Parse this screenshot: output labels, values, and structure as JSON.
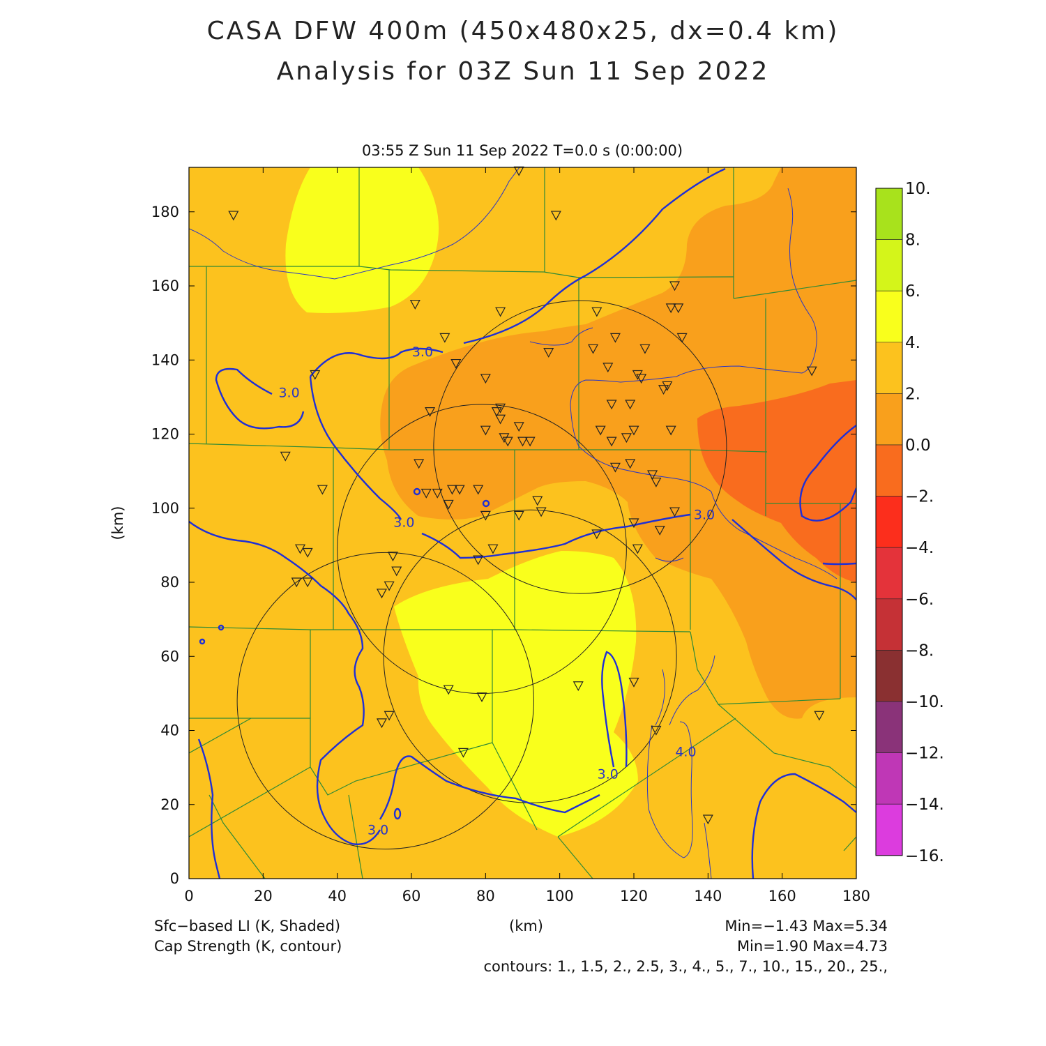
{
  "header": {
    "title_line1": "CASA DFW 400m (450x480x25, dx=0.4 km)",
    "title_line2": "Analysis for 03Z Sun 11 Sep 2022",
    "subtitle": "03:55 Z Sun 11 Sep 2022    T=0.0 s (0:00:00)"
  },
  "axes": {
    "x_label": "(km)",
    "y_label": "(km)",
    "x_range": [
      0,
      180
    ],
    "y_range": [
      0,
      192
    ],
    "x_ticks": [
      "0",
      "20",
      "40",
      "60",
      "80",
      "100",
      "120",
      "140",
      "160",
      "180"
    ],
    "y_ticks": [
      "0",
      "20",
      "40",
      "60",
      "80",
      "100",
      "120",
      "140",
      "160",
      "180"
    ]
  },
  "colorbar": {
    "labels": [
      "10.",
      "8.",
      "6.",
      "4.",
      "2.",
      "0.0",
      "−2.",
      "−4.",
      "−6.",
      "−8.",
      "−10.",
      "−12.",
      "−14.",
      "−16."
    ],
    "colors": [
      "#a8e21c",
      "#d4f51a",
      "#f9ff1c",
      "#fcc21e",
      "#f9a01c",
      "#f96c1e",
      "#fc2e1c",
      "#e4333a",
      "#c53136",
      "#8a3031",
      "#8a3379",
      "#bf37b6",
      "#dc3cde"
    ]
  },
  "contour_labels": [
    {
      "text": "3.0",
      "x": 63,
      "y": 141
    },
    {
      "text": "3.0",
      "x": 27,
      "y": 130
    },
    {
      "text": "3.0",
      "x": 58,
      "y": 95
    },
    {
      "text": "3.0",
      "x": 139,
      "y": 97
    },
    {
      "text": "3.0",
      "x": 113,
      "y": 27
    },
    {
      "text": "3.0",
      "x": 51,
      "y": 12
    },
    {
      "text": "4.0",
      "x": 134,
      "y": 33
    }
  ],
  "radar_rings": [
    {
      "cx": 105.5,
      "cy": 116.5,
      "r": 39.5
    },
    {
      "cx": 79,
      "cy": 89,
      "r": 39
    },
    {
      "cx": 92,
      "cy": 60,
      "r": 39.5
    },
    {
      "cx": 53,
      "cy": 48,
      "r": 40
    }
  ],
  "stations": [
    [
      12,
      179
    ],
    [
      99,
      179
    ],
    [
      89,
      191
    ],
    [
      61,
      155
    ],
    [
      84,
      153
    ],
    [
      69,
      146
    ],
    [
      72,
      139
    ],
    [
      97,
      142
    ],
    [
      110,
      153
    ],
    [
      115,
      146
    ],
    [
      123,
      143
    ],
    [
      130,
      154
    ],
    [
      132,
      154
    ],
    [
      131,
      160
    ],
    [
      133,
      146
    ],
    [
      109,
      143
    ],
    [
      113,
      138
    ],
    [
      121,
      136
    ],
    [
      122,
      135
    ],
    [
      128,
      132
    ],
    [
      129,
      133
    ],
    [
      168,
      137
    ],
    [
      80,
      135
    ],
    [
      65,
      126
    ],
    [
      84,
      127
    ],
    [
      83,
      126
    ],
    [
      84,
      124
    ],
    [
      89,
      122
    ],
    [
      80,
      121
    ],
    [
      85,
      119
    ],
    [
      86,
      118
    ],
    [
      90,
      118
    ],
    [
      92,
      118
    ],
    [
      114,
      128
    ],
    [
      119,
      128
    ],
    [
      111,
      121
    ],
    [
      114,
      118
    ],
    [
      118,
      119
    ],
    [
      120,
      121
    ],
    [
      130,
      121
    ],
    [
      62,
      112
    ],
    [
      64,
      104
    ],
    [
      67,
      104
    ],
    [
      70,
      101
    ],
    [
      71,
      105
    ],
    [
      73,
      105
    ],
    [
      78,
      105
    ],
    [
      80,
      98
    ],
    [
      89,
      98
    ],
    [
      94,
      102
    ],
    [
      95,
      99
    ],
    [
      120,
      96
    ],
    [
      125,
      109
    ],
    [
      126,
      107
    ],
    [
      127,
      94
    ],
    [
      131,
      99
    ],
    [
      119,
      112
    ],
    [
      115,
      111
    ],
    [
      110,
      93
    ],
    [
      121,
      89
    ],
    [
      78,
      86
    ],
    [
      82,
      89
    ],
    [
      26,
      114
    ],
    [
      36,
      105
    ],
    [
      34,
      136
    ],
    [
      30,
      89
    ],
    [
      32,
      88
    ],
    [
      29,
      80
    ],
    [
      32,
      80
    ],
    [
      55,
      87
    ],
    [
      56,
      83
    ],
    [
      54,
      79
    ],
    [
      52,
      77
    ],
    [
      70,
      51
    ],
    [
      79,
      49
    ],
    [
      105,
      52
    ],
    [
      120,
      53
    ],
    [
      126,
      40
    ],
    [
      54,
      44
    ],
    [
      52,
      42
    ],
    [
      74,
      34
    ],
    [
      140,
      16
    ],
    [
      170,
      44
    ]
  ],
  "stats": {
    "shade_label": "Sfc−based LI (K, Shaded)",
    "contour_label": "Cap Strength (K, contour)",
    "shade_minmax": "Min=−1.43 Max=5.34",
    "contour_minmax": "Min=1.90 Max=4.73",
    "contours": "contours: 1., 1.5, 2., 2.5, 3., 4., 5., 7., 10., 15., 20., 25.,"
  }
}
